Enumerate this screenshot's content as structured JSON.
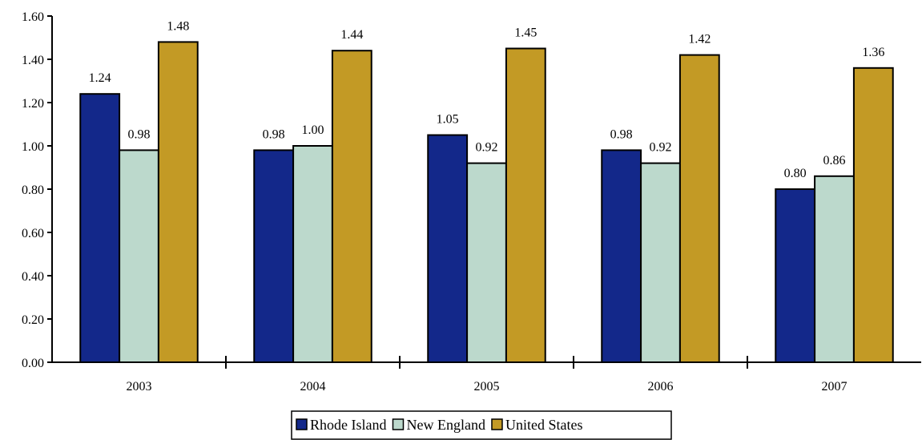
{
  "chart_data": {
    "type": "bar",
    "categories": [
      "2003",
      "2004",
      "2005",
      "2006",
      "2007"
    ],
    "series": [
      {
        "name": "Rhode Island",
        "color": "#13288a",
        "values": [
          1.24,
          0.98,
          1.05,
          0.98,
          0.8
        ],
        "labels": [
          "1.24",
          "0.98",
          "1.05",
          "0.98",
          "0.80"
        ]
      },
      {
        "name": "New England",
        "color": "#bcd9cc",
        "values": [
          0.98,
          1.0,
          0.92,
          0.92,
          0.86
        ],
        "labels": [
          "0.98",
          "1.00",
          "0.92",
          "0.92",
          "0.86"
        ]
      },
      {
        "name": "United States",
        "color": "#c39a25",
        "values": [
          1.48,
          1.44,
          1.45,
          1.42,
          1.36
        ],
        "labels": [
          "1.48",
          "1.44",
          "1.45",
          "1.42",
          "1.36"
        ]
      }
    ],
    "yticks": [
      "0.00",
      "0.20",
      "0.40",
      "0.60",
      "0.80",
      "1.00",
      "1.20",
      "1.40",
      "1.60"
    ],
    "ylim": [
      0,
      1.6
    ],
    "title": "",
    "xlabel": "",
    "ylabel": "",
    "grid": false,
    "legend_position": "bottom-center"
  }
}
